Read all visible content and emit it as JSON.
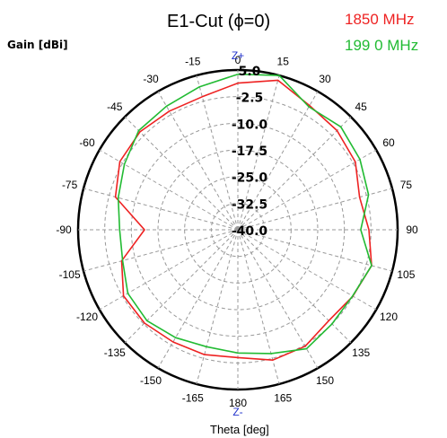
{
  "chart_data": {
    "type": "polar",
    "title": "E1-Cut (ϕ=0)",
    "ylabel": "Gain [dBi]",
    "xlabel": "Theta [deg]",
    "zplus_label": "Z+",
    "zminus_label": "Z-",
    "radial_range": [
      -40,
      5
    ],
    "radial_ticks": [
      5.0,
      -2.5,
      -10.0,
      -17.5,
      -25.0,
      -32.5,
      -40.0
    ],
    "radial_tick_labels": [
      "5.0",
      "-2.5",
      "-10.0",
      "-17.5",
      "-25.0",
      "-32.5",
      "-40.0"
    ],
    "angle_ticks": [
      0,
      15,
      30,
      45,
      60,
      75,
      90,
      105,
      120,
      135,
      150,
      165,
      180,
      -165,
      -150,
      -135,
      -120,
      -105,
      -90,
      -75,
      -60,
      -45,
      -30,
      -15
    ],
    "angle_tick_labels": [
      "0",
      "15",
      "30",
      "45",
      "60",
      "75",
      "90",
      "105",
      "120",
      "135",
      "150",
      "165",
      "180",
      "-165",
      "-150",
      "-135",
      "-120",
      "-105",
      "-90",
      "-75",
      "-60",
      "-45",
      "-30",
      "-15"
    ],
    "grid": true,
    "legend_position": "top-right",
    "series": [
      {
        "name": "1850  MHz",
        "color": "#ee2222",
        "theta": [
          0,
          15,
          30,
          45,
          60,
          75,
          90,
          105,
          120,
          135,
          150,
          165,
          180,
          -165,
          -150,
          -135,
          -120,
          -105,
          -90,
          -75,
          -60,
          -45,
          -30,
          -15,
          0
        ],
        "gain": [
          1.3,
          3.6,
          0.4,
          -0.5,
          -1.8,
          -4.5,
          -3.1,
          -1.0,
          -2.6,
          -3.8,
          -2.1,
          -2.0,
          -4.0,
          -3.6,
          -3.5,
          -2.8,
          -2.8,
          -6.1,
          -13.7,
          -4.3,
          -1.6,
          -1.0,
          -1.4,
          -1.2,
          1.3
        ]
      },
      {
        "name": "199 0 MHz",
        "color": "#22bb33",
        "theta": [
          0,
          15,
          30,
          45,
          60,
          75,
          90,
          105,
          120,
          135,
          150,
          165,
          180,
          -165,
          -150,
          -135,
          -120,
          -105,
          -90,
          -75,
          -60,
          -45,
          -30,
          -15,
          0
        ],
        "gain": [
          3.8,
          5.0,
          0.0,
          1.0,
          -0.3,
          -1.9,
          -5.4,
          -1.0,
          -2.7,
          -2.5,
          -1.3,
          -3.9,
          -5.3,
          -5.9,
          -4.9,
          -3.8,
          -4.2,
          -6.4,
          -6.7,
          -5.1,
          -3.1,
          -0.5,
          0.2,
          1.7,
          3.8
        ]
      }
    ]
  }
}
